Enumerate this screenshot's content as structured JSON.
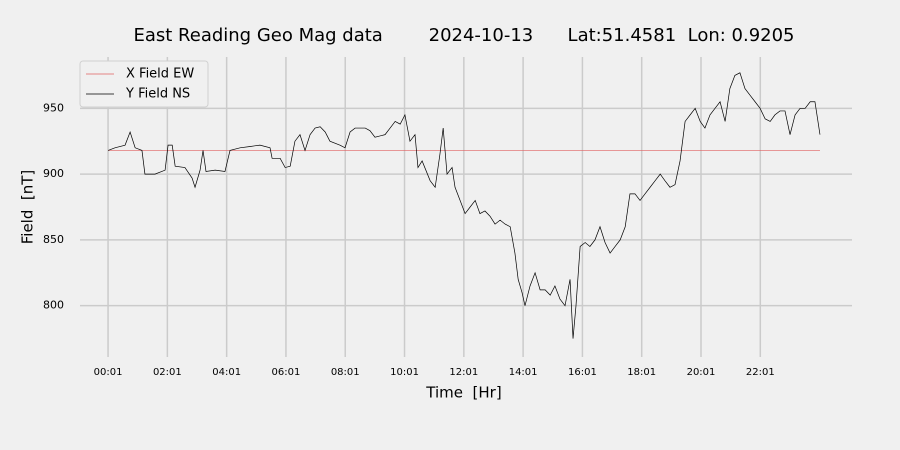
{
  "chart_data": {
    "type": "line",
    "title": "East Reading Geo Mag data        2024-10-13      Lat:51.4581  Lon: 0.9205",
    "xlabel": "Time  [Hr]",
    "ylabel": "Field  [nT]",
    "xlim": [
      -0.93,
      25.11
    ],
    "ylim": [
      761,
      989
    ],
    "xticks": [
      {
        "value": 0.0167,
        "label": "00:01"
      },
      {
        "value": 2.0167,
        "label": "02:01"
      },
      {
        "value": 4.0167,
        "label": "04:01"
      },
      {
        "value": 6.0167,
        "label": "06:01"
      },
      {
        "value": 8.0167,
        "label": "08:01"
      },
      {
        "value": 10.0167,
        "label": "10:01"
      },
      {
        "value": 12.0167,
        "label": "12:01"
      },
      {
        "value": 14.0167,
        "label": "14:01"
      },
      {
        "value": 16.0167,
        "label": "16:01"
      },
      {
        "value": 18.0167,
        "label": "18:01"
      },
      {
        "value": 20.0167,
        "label": "20:01"
      },
      {
        "value": 22.0167,
        "label": "22:01"
      }
    ],
    "yticks": [
      800,
      850,
      900,
      950
    ],
    "grid": true,
    "legend": "upper left",
    "series": [
      {
        "name": "X Field EW",
        "color": "#e06060",
        "x": [
          0.02,
          24.03
        ],
        "values": [
          918,
          918
        ]
      },
      {
        "name": "Y Field NS",
        "color": "#000000",
        "x": [
          0.02,
          0.25,
          0.59,
          0.76,
          0.93,
          1.16,
          1.26,
          1.6,
          1.94,
          2.04,
          2.18,
          2.28,
          2.61,
          2.85,
          2.95,
          3.12,
          3.22,
          3.32,
          3.63,
          3.96,
          4.13,
          4.47,
          4.81,
          5.14,
          5.48,
          5.55,
          5.82,
          5.99,
          6.16,
          6.32,
          6.49,
          6.66,
          6.83,
          7.0,
          7.17,
          7.34,
          7.5,
          7.84,
          8.01,
          8.18,
          8.35,
          8.69,
          8.85,
          9.02,
          9.36,
          9.53,
          9.7,
          9.87,
          10.03,
          10.2,
          10.37,
          10.47,
          10.61,
          10.88,
          11.05,
          11.21,
          11.32,
          11.45,
          11.62,
          11.72,
          11.89,
          12.06,
          12.23,
          12.4,
          12.56,
          12.73,
          12.9,
          13.07,
          13.24,
          13.41,
          13.58,
          13.74,
          13.85,
          13.98,
          14.08,
          14.25,
          14.42,
          14.59,
          14.76,
          14.93,
          15.09,
          15.26,
          15.43,
          15.6,
          15.7,
          15.8,
          15.94,
          16.11,
          16.27,
          16.44,
          16.61,
          16.78,
          16.95,
          17.12,
          17.29,
          17.46,
          17.62,
          17.79,
          17.96,
          18.13,
          18.3,
          18.47,
          18.64,
          18.8,
          18.97,
          19.14,
          19.31,
          19.48,
          19.65,
          19.82,
          19.99,
          20.15,
          20.32,
          20.49,
          20.66,
          20.83,
          20.99,
          21.16,
          21.33,
          21.5,
          21.67,
          21.84,
          22.01,
          22.18,
          22.35,
          22.51,
          22.68,
          22.85,
          23.02,
          23.19,
          23.36,
          23.53,
          23.7,
          23.86,
          24.03
        ],
        "values": [
          918,
          920,
          922,
          932,
          920,
          918,
          900,
          900,
          903,
          922,
          922,
          906,
          905,
          897,
          890,
          903,
          918,
          902,
          903,
          902,
          918,
          920,
          921,
          922,
          920,
          912,
          912,
          905,
          906,
          925,
          930,
          918,
          930,
          935,
          936,
          932,
          925,
          922,
          920,
          932,
          935,
          935,
          933,
          928,
          930,
          935,
          940,
          938,
          945,
          925,
          930,
          905,
          910,
          895,
          890,
          915,
          935,
          900,
          905,
          890,
          880,
          870,
          875,
          880,
          870,
          872,
          868,
          862,
          865,
          862,
          860,
          840,
          820,
          810,
          800,
          815,
          825,
          812,
          812,
          808,
          815,
          805,
          800,
          820,
          775,
          800,
          845,
          848,
          845,
          850,
          860,
          848,
          840,
          845,
          850,
          860,
          885,
          885,
          880,
          885,
          890,
          895,
          900,
          895,
          890,
          892,
          910,
          940,
          945,
          950,
          940,
          935,
          945,
          950,
          955,
          940,
          965,
          975,
          977,
          965,
          960,
          955,
          950,
          942,
          940,
          945,
          948,
          948,
          930,
          945,
          950,
          950,
          955,
          955,
          930
        ]
      }
    ]
  }
}
